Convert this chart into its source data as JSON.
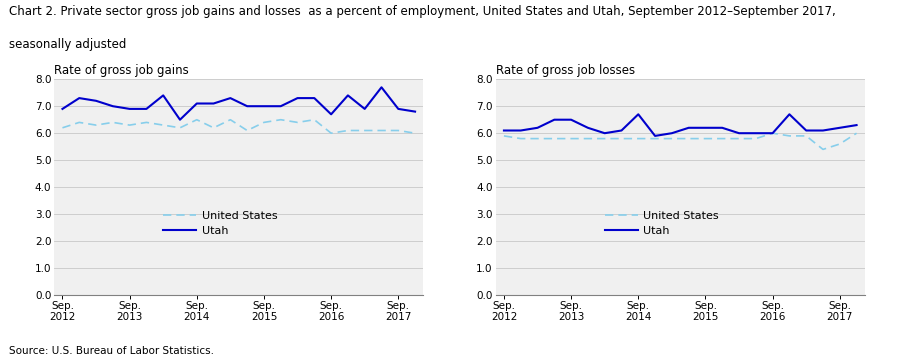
{
  "title_line1": "Chart 2. Private sector gross job gains and losses  as a percent of employment, United States and Utah, September 2012–September 2017,",
  "title_line2": "seasonally adjusted",
  "left_subtitle": "Rate of gross job gains",
  "right_subtitle": "Rate of gross job losses",
  "source": "Source: U.S. Bureau of Labor Statistics.",
  "xtick_labels": [
    "Sep.\n2012",
    "Sep.\n2013",
    "Sep.\n2014",
    "Sep.\n2015",
    "Sep.\n2016",
    "Sep.\n2017"
  ],
  "xtick_positions": [
    0,
    4,
    8,
    12,
    16,
    20
  ],
  "ylim": [
    0.0,
    8.0
  ],
  "yticks": [
    0.0,
    1.0,
    2.0,
    3.0,
    4.0,
    5.0,
    6.0,
    7.0,
    8.0
  ],
  "gains_utah": [
    6.9,
    7.3,
    7.2,
    7.0,
    6.9,
    6.9,
    7.4,
    6.5,
    7.1,
    7.1,
    7.3,
    7.0,
    7.0,
    7.0,
    7.3,
    7.3,
    6.7,
    7.4,
    6.9,
    7.7,
    6.9,
    6.8
  ],
  "gains_us": [
    6.2,
    6.4,
    6.3,
    6.4,
    6.3,
    6.4,
    6.3,
    6.2,
    6.5,
    6.2,
    6.5,
    6.1,
    6.4,
    6.5,
    6.4,
    6.5,
    6.0,
    6.1,
    6.1,
    6.1,
    6.1,
    6.0
  ],
  "losses_utah": [
    6.1,
    6.1,
    6.2,
    6.5,
    6.5,
    6.2,
    6.0,
    6.1,
    6.7,
    5.9,
    6.0,
    6.2,
    6.2,
    6.2,
    6.0,
    6.0,
    6.0,
    6.7,
    6.1,
    6.1,
    6.2,
    6.3
  ],
  "losses_us": [
    5.9,
    5.8,
    5.8,
    5.8,
    5.8,
    5.8,
    5.8,
    5.8,
    5.8,
    5.8,
    5.8,
    5.8,
    5.8,
    5.8,
    5.8,
    5.8,
    6.0,
    5.9,
    5.9,
    5.4,
    5.6,
    6.0
  ],
  "utah_color": "#0000CC",
  "us_color": "#87CEEB",
  "bg_color": "#F0F0F0",
  "grid_color": "#C8C8C8",
  "title_fontsize": 8.5,
  "subtitle_fontsize": 8.5,
  "axis_fontsize": 7.5,
  "legend_fontsize": 8,
  "source_fontsize": 7.5
}
